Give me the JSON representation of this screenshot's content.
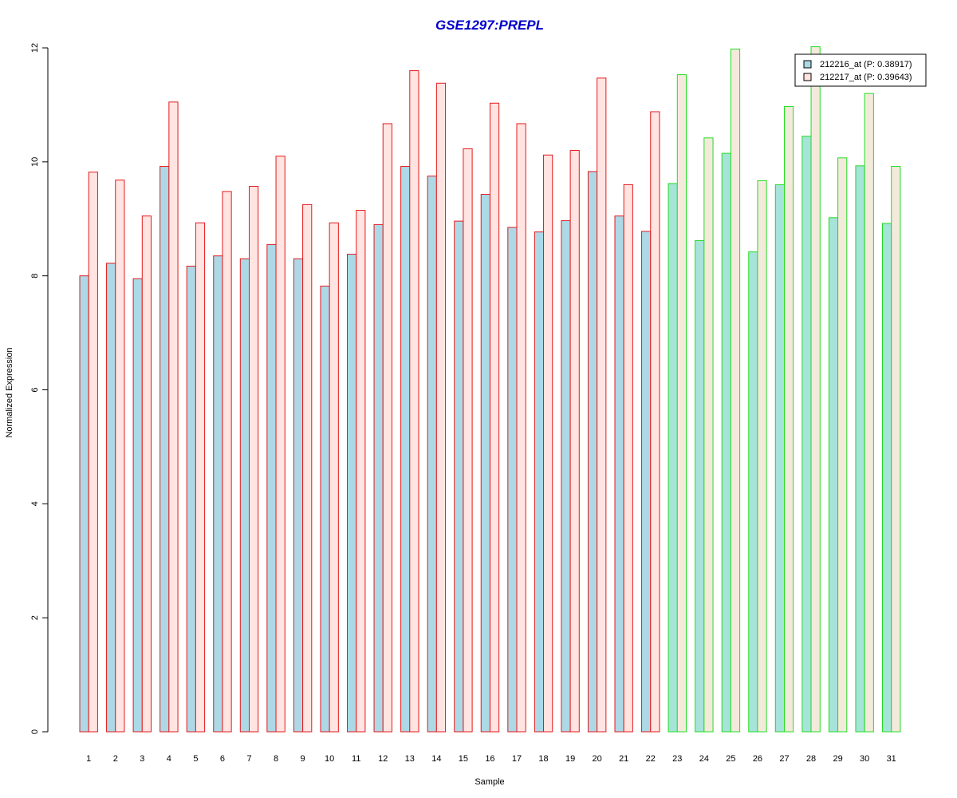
{
  "chart_data": {
    "type": "bar",
    "title": "GSE1297:PREPL",
    "xlabel": "Sample",
    "ylabel": "Normalized Expression",
    "ylim": [
      0,
      12
    ],
    "yticks": [
      0,
      2,
      4,
      6,
      8,
      10,
      12
    ],
    "categories": [
      "1",
      "2",
      "3",
      "4",
      "5",
      "6",
      "7",
      "8",
      "9",
      "10",
      "11",
      "12",
      "13",
      "14",
      "15",
      "16",
      "17",
      "18",
      "19",
      "20",
      "21",
      "22",
      "23",
      "24",
      "25",
      "26",
      "27",
      "28",
      "29",
      "30",
      "31"
    ],
    "group_border_colors": [
      "#e41a1c",
      "#e41a1c",
      "#e41a1c",
      "#e41a1c",
      "#e41a1c",
      "#e41a1c",
      "#e41a1c",
      "#e41a1c",
      "#e41a1c",
      "#e41a1c",
      "#e41a1c",
      "#e41a1c",
      "#e41a1c",
      "#e41a1c",
      "#e41a1c",
      "#e41a1c",
      "#e41a1c",
      "#e41a1c",
      "#e41a1c",
      "#e41a1c",
      "#e41a1c",
      "#e41a1c",
      "#22dd22",
      "#22dd22",
      "#22dd22",
      "#22dd22",
      "#22dd22",
      "#22dd22",
      "#22dd22",
      "#22dd22",
      "#22dd22"
    ],
    "series": [
      {
        "name": "212216_at (P: 0.38917)",
        "fill_colors": {
          "#e41a1c": "#add8e6",
          "#22dd22": "#a6e3d9"
        },
        "values": [
          8.0,
          8.22,
          7.95,
          9.92,
          8.17,
          8.35,
          8.3,
          8.55,
          8.3,
          7.82,
          8.38,
          8.9,
          9.92,
          9.75,
          8.96,
          9.43,
          8.85,
          8.77,
          8.97,
          9.83,
          9.05,
          8.78,
          9.62,
          8.62,
          10.15,
          8.42,
          9.6,
          10.45,
          9.02,
          9.93,
          8.92
        ]
      },
      {
        "name": "212217_at (P: 0.39643)",
        "fill_colors": {
          "#e41a1c": "#ffe4e1",
          "#22dd22": "#f3eadc"
        },
        "values": [
          9.82,
          9.68,
          9.05,
          11.05,
          8.93,
          9.48,
          9.57,
          10.1,
          9.25,
          8.93,
          9.15,
          10.67,
          11.6,
          11.38,
          10.23,
          11.03,
          10.67,
          10.12,
          10.2,
          11.47,
          9.6,
          10.88,
          11.53,
          10.42,
          11.98,
          9.67,
          10.97,
          12.02,
          10.07,
          11.2,
          9.92
        ]
      }
    ],
    "legend": {
      "position": "top-right",
      "entries": [
        {
          "label": "212216_at (P: 0.38917)",
          "fill": "#add8e6"
        },
        {
          "label": "212217_at (P: 0.39643)",
          "fill": "#ffe4e1"
        }
      ]
    },
    "title_color": "#0000cc",
    "grid": false
  }
}
